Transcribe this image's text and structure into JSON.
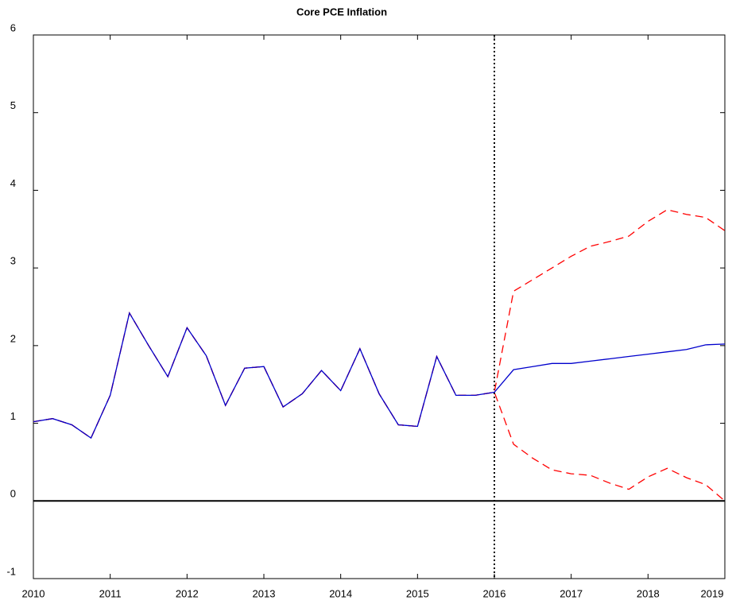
{
  "chart_data": {
    "type": "line",
    "title": "Core PCE Inflation",
    "x": [
      2010,
      2010.25,
      2010.5,
      2010.75,
      2011,
      2011.25,
      2011.5,
      2011.75,
      2012,
      2012.25,
      2012.5,
      2012.75,
      2013,
      2013.25,
      2013.5,
      2013.75,
      2014,
      2014.25,
      2014.5,
      2014.75,
      2015,
      2015.25,
      2015.5,
      2015.75,
      2016,
      2016.25,
      2016.5,
      2016.75,
      2017,
      2017.25,
      2017.5,
      2017.75,
      2018,
      2018.25,
      2018.5,
      2018.75,
      2019
    ],
    "series": [
      {
        "color": "#ff0000",
        "style": "dashed",
        "values": [
          1.02,
          1.06,
          0.98,
          0.81,
          1.36,
          2.42,
          2.0,
          1.6,
          2.23,
          1.87,
          1.23,
          1.71,
          1.73,
          1.21,
          1.38,
          1.68,
          1.42,
          1.96,
          1.38,
          0.98,
          0.96,
          1.86,
          1.36,
          1.36,
          1.4,
          2.7,
          2.85,
          3.0,
          3.15,
          3.28,
          3.34,
          3.41,
          3.6,
          3.75,
          3.69,
          3.65,
          3.48
        ]
      },
      {
        "color": "#ff0000",
        "style": "dashed",
        "values": [
          1.02,
          1.06,
          0.98,
          0.81,
          1.36,
          2.42,
          2.0,
          1.6,
          2.23,
          1.87,
          1.23,
          1.71,
          1.73,
          1.21,
          1.38,
          1.68,
          1.42,
          1.96,
          1.38,
          0.98,
          0.96,
          1.86,
          1.36,
          1.36,
          1.4,
          0.73,
          0.55,
          0.4,
          0.35,
          0.33,
          0.23,
          0.15,
          0.31,
          0.42,
          0.3,
          0.21,
          0.0
        ]
      },
      {
        "color": "#0000cc",
        "style": "solid",
        "values": [
          1.02,
          1.06,
          0.98,
          0.81,
          1.36,
          2.42,
          2.0,
          1.6,
          2.23,
          1.87,
          1.23,
          1.71,
          1.73,
          1.21,
          1.38,
          1.68,
          1.42,
          1.96,
          1.38,
          0.98,
          0.96,
          1.86,
          1.36,
          1.36,
          1.4,
          1.69,
          1.73,
          1.77,
          1.77,
          1.8,
          1.83,
          1.86,
          1.89,
          1.92,
          1.95,
          2.01,
          2.02
        ]
      }
    ],
    "xlim": [
      2010,
      2019
    ],
    "xticks": [
      2010,
      2011,
      2012,
      2013,
      2014,
      2015,
      2016,
      2017,
      2018,
      2019
    ],
    "ylim": [
      -1,
      6
    ],
    "yticks": [
      -1,
      0,
      1,
      2,
      3,
      4,
      5,
      6
    ],
    "hlines": [
      0
    ],
    "vlines": [
      2016
    ],
    "grid": false
  }
}
